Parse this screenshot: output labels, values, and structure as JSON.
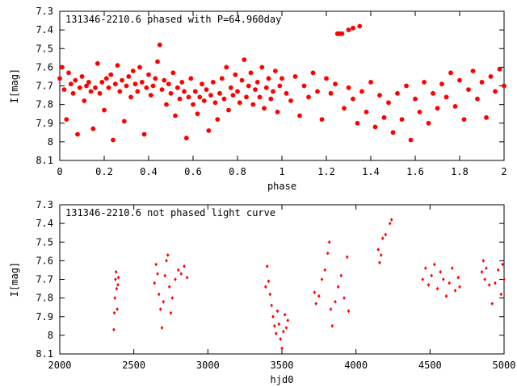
{
  "chart_data": [
    {
      "type": "scatter",
      "title": "131346-2210.6 phased with P=64.960day",
      "xlabel": "phase",
      "ylabel": "I[mag]",
      "xlim": [
        0,
        2
      ],
      "ylim": [
        8.1,
        7.3
      ],
      "y_inverted": true,
      "x_ticks": [
        "0",
        "0.2",
        "0.4",
        "0.6",
        "0.8",
        "1",
        "1.2",
        "1.4",
        "1.6",
        "1.8",
        "2"
      ],
      "y_ticks": [
        "7.3",
        "7.4",
        "7.5",
        "7.6",
        "7.7",
        "7.8",
        "7.9",
        "8",
        "8.1"
      ],
      "marker": "filled circle",
      "color": "#ff0000",
      "grid": false,
      "series": [
        {
          "points": [
            [
              0.0,
              7.66
            ],
            [
              0.01,
              7.6
            ],
            [
              0.02,
              7.72
            ],
            [
              0.03,
              7.88
            ],
            [
              0.04,
              7.63
            ],
            [
              0.05,
              7.69
            ],
            [
              0.06,
              7.74
            ],
            [
              0.07,
              7.67
            ],
            [
              0.08,
              7.96
            ],
            [
              0.09,
              7.71
            ],
            [
              0.1,
              7.65
            ],
            [
              0.11,
              7.78
            ],
            [
              0.12,
              7.7
            ],
            [
              0.13,
              7.68
            ],
            [
              0.14,
              7.73
            ],
            [
              0.15,
              7.93
            ],
            [
              0.16,
              7.71
            ],
            [
              0.17,
              7.58
            ],
            [
              0.18,
              7.74
            ],
            [
              0.19,
              7.68
            ],
            [
              0.2,
              7.83
            ],
            [
              0.21,
              7.66
            ],
            [
              0.22,
              7.71
            ],
            [
              0.23,
              7.64
            ],
            [
              0.24,
              7.99
            ],
            [
              0.25,
              7.69
            ],
            [
              0.26,
              7.59
            ],
            [
              0.27,
              7.73
            ],
            [
              0.28,
              7.67
            ],
            [
              0.29,
              7.89
            ],
            [
              0.3,
              7.7
            ],
            [
              0.31,
              7.65
            ],
            [
              0.32,
              7.76
            ],
            [
              0.33,
              7.62
            ],
            [
              0.34,
              7.69
            ],
            [
              0.35,
              7.73
            ],
            [
              0.36,
              7.6
            ],
            [
              0.37,
              7.68
            ],
            [
              0.38,
              7.96
            ],
            [
              0.39,
              7.71
            ],
            [
              0.4,
              7.64
            ],
            [
              0.41,
              7.75
            ],
            [
              0.42,
              7.7
            ],
            [
              0.43,
              7.66
            ],
            [
              0.44,
              7.57
            ],
            [
              0.45,
              7.48
            ],
            [
              0.46,
              7.72
            ],
            [
              0.47,
              7.67
            ],
            [
              0.48,
              7.8
            ],
            [
              0.49,
              7.69
            ],
            [
              0.5,
              7.74
            ],
            [
              0.51,
              7.63
            ],
            [
              0.52,
              7.86
            ],
            [
              0.53,
              7.71
            ],
            [
              0.54,
              7.77
            ],
            [
              0.55,
              7.68
            ],
            [
              0.56,
              7.73
            ],
            [
              0.57,
              7.98
            ],
            [
              0.58,
              7.76
            ],
            [
              0.59,
              7.66
            ],
            [
              0.6,
              7.8
            ],
            [
              0.61,
              7.73
            ],
            [
              0.62,
              7.85
            ],
            [
              0.63,
              7.76
            ],
            [
              0.64,
              7.69
            ],
            [
              0.65,
              7.78
            ],
            [
              0.66,
              7.72
            ],
            [
              0.67,
              7.94
            ],
            [
              0.68,
              7.75
            ],
            [
              0.69,
              7.68
            ],
            [
              0.7,
              7.79
            ],
            [
              0.71,
              7.88
            ],
            [
              0.72,
              7.74
            ],
            [
              0.73,
              7.66
            ],
            [
              0.74,
              7.77
            ],
            [
              0.75,
              7.6
            ],
            [
              0.76,
              7.83
            ],
            [
              0.77,
              7.71
            ],
            [
              0.78,
              7.75
            ],
            [
              0.79,
              7.64
            ],
            [
              0.8,
              7.73
            ],
            [
              0.81,
              7.79
            ],
            [
              0.82,
              7.67
            ],
            [
              0.83,
              7.56
            ],
            [
              0.84,
              7.76
            ],
            [
              0.85,
              7.7
            ],
            [
              0.86,
              7.63
            ],
            [
              0.87,
              7.8
            ],
            [
              0.88,
              7.72
            ],
            [
              0.89,
              7.68
            ],
            [
              0.9,
              7.76
            ],
            [
              0.91,
              7.6
            ],
            [
              0.92,
              7.82
            ],
            [
              0.93,
              7.71
            ],
            [
              0.94,
              7.66
            ],
            [
              0.95,
              7.77
            ],
            [
              0.96,
              7.73
            ],
            [
              0.97,
              7.62
            ],
            [
              0.98,
              7.84
            ],
            [
              0.99,
              7.7
            ],
            [
              1.0,
              7.66
            ],
            [
              1.02,
              7.74
            ],
            [
              1.04,
              7.78
            ],
            [
              1.06,
              7.65
            ],
            [
              1.08,
              7.86
            ],
            [
              1.1,
              7.7
            ],
            [
              1.12,
              7.76
            ],
            [
              1.14,
              7.63
            ],
            [
              1.16,
              7.73
            ],
            [
              1.18,
              7.88
            ],
            [
              1.2,
              7.66
            ],
            [
              1.22,
              7.74
            ],
            [
              1.24,
              7.69
            ],
            [
              1.25,
              7.42
            ],
            [
              1.26,
              7.42
            ],
            [
              1.27,
              7.42
            ],
            [
              1.3,
              7.4
            ],
            [
              1.32,
              7.39
            ],
            [
              1.35,
              7.38
            ],
            [
              1.28,
              7.82
            ],
            [
              1.3,
              7.71
            ],
            [
              1.32,
              7.77
            ],
            [
              1.34,
              7.9
            ],
            [
              1.36,
              7.73
            ],
            [
              1.38,
              7.84
            ],
            [
              1.4,
              7.68
            ],
            [
              1.42,
              7.92
            ],
            [
              1.44,
              7.75
            ],
            [
              1.46,
              7.87
            ],
            [
              1.48,
              7.79
            ],
            [
              1.5,
              7.95
            ],
            [
              1.52,
              7.74
            ],
            [
              1.54,
              7.88
            ],
            [
              1.56,
              7.7
            ],
            [
              1.58,
              7.99
            ],
            [
              1.6,
              7.77
            ],
            [
              1.62,
              7.84
            ],
            [
              1.64,
              7.68
            ],
            [
              1.66,
              7.9
            ],
            [
              1.68,
              7.74
            ],
            [
              1.7,
              7.82
            ],
            [
              1.72,
              7.69
            ],
            [
              1.74,
              7.76
            ],
            [
              1.76,
              7.63
            ],
            [
              1.78,
              7.81
            ],
            [
              1.8,
              7.67
            ],
            [
              1.82,
              7.88
            ],
            [
              1.84,
              7.72
            ],
            [
              1.86,
              7.62
            ],
            [
              1.88,
              7.77
            ],
            [
              1.9,
              7.68
            ],
            [
              1.92,
              7.87
            ],
            [
              1.94,
              7.65
            ],
            [
              1.96,
              7.73
            ],
            [
              1.98,
              7.61
            ],
            [
              2.0,
              7.7
            ]
          ]
        }
      ]
    },
    {
      "type": "scatter",
      "title": "131346-2210.6 not phased light curve",
      "xlabel": "hjd0",
      "ylabel": "I[mag]",
      "xlim": [
        2000,
        5000
      ],
      "ylim": [
        8.1,
        7.3
      ],
      "y_inverted": true,
      "x_ticks": [
        "2000",
        "2500",
        "3000",
        "3500",
        "4000",
        "4500",
        "5000"
      ],
      "y_ticks": [
        "7.3",
        "7.4",
        "7.5",
        "7.6",
        "7.7",
        "7.8",
        "7.9",
        "8",
        "8.1"
      ],
      "marker": "small filled diamond",
      "color": "#ff0000",
      "grid": false,
      "series": [
        {
          "points": [
            [
              2365,
              7.97
            ],
            [
              2368,
              7.88
            ],
            [
              2372,
              7.8
            ],
            [
              2376,
              7.7
            ],
            [
              2380,
              7.66
            ],
            [
              2384,
              7.75
            ],
            [
              2388,
              7.86
            ],
            [
              2392,
              7.73
            ],
            [
              2396,
              7.69
            ],
            [
              2640,
              7.72
            ],
            [
              2650,
              7.62
            ],
            [
              2660,
              7.67
            ],
            [
              2670,
              7.78
            ],
            [
              2680,
              7.86
            ],
            [
              2690,
              7.96
            ],
            [
              2700,
              7.82
            ],
            [
              2710,
              7.68
            ],
            [
              2720,
              7.6
            ],
            [
              2730,
              7.57
            ],
            [
              2740,
              7.74
            ],
            [
              2750,
              7.88
            ],
            [
              2760,
              7.8
            ],
            [
              2780,
              7.7
            ],
            [
              2800,
              7.65
            ],
            [
              2820,
              7.67
            ],
            [
              2840,
              7.63
            ],
            [
              2860,
              7.69
            ],
            [
              3390,
              7.74
            ],
            [
              3400,
              7.63
            ],
            [
              3410,
              7.71
            ],
            [
              3420,
              7.78
            ],
            [
              3430,
              7.84
            ],
            [
              3440,
              7.9
            ],
            [
              3450,
              7.95
            ],
            [
              3460,
              7.99
            ],
            [
              3470,
              7.87
            ],
            [
              3480,
              7.94
            ],
            [
              3490,
              8.02
            ],
            [
              3500,
              8.07
            ],
            [
              3510,
              7.98
            ],
            [
              3520,
              7.89
            ],
            [
              3530,
              7.96
            ],
            [
              3540,
              7.92
            ],
            [
              3720,
              7.77
            ],
            [
              3730,
              7.83
            ],
            [
              3750,
              7.79
            ],
            [
              3770,
              7.7
            ],
            [
              3790,
              7.65
            ],
            [
              3810,
              7.56
            ],
            [
              3820,
              7.5
            ],
            [
              3830,
              7.86
            ],
            [
              3840,
              7.95
            ],
            [
              3860,
              7.82
            ],
            [
              3880,
              7.74
            ],
            [
              3900,
              7.68
            ],
            [
              3920,
              7.8
            ],
            [
              3940,
              7.58
            ],
            [
              3950,
              7.87
            ],
            [
              4150,
              7.54
            ],
            [
              4160,
              7.61
            ],
            [
              4170,
              7.57
            ],
            [
              4180,
              7.48
            ],
            [
              4200,
              7.46
            ],
            [
              4230,
              7.4
            ],
            [
              4240,
              7.38
            ],
            [
              4450,
              7.7
            ],
            [
              4470,
              7.64
            ],
            [
              4490,
              7.73
            ],
            [
              4510,
              7.68
            ],
            [
              4530,
              7.62
            ],
            [
              4550,
              7.75
            ],
            [
              4570,
              7.66
            ],
            [
              4590,
              7.7
            ],
            [
              4610,
              7.79
            ],
            [
              4630,
              7.72
            ],
            [
              4650,
              7.64
            ],
            [
              4670,
              7.76
            ],
            [
              4690,
              7.69
            ],
            [
              4700,
              7.74
            ],
            [
              4850,
              7.66
            ],
            [
              4860,
              7.6
            ],
            [
              4870,
              7.7
            ],
            [
              4880,
              7.64
            ],
            [
              4900,
              7.73
            ],
            [
              4920,
              7.83
            ],
            [
              4940,
              7.72
            ],
            [
              4960,
              7.65
            ],
            [
              4980,
              7.78
            ],
            [
              4990,
              7.62
            ],
            [
              5000,
              7.7
            ]
          ]
        }
      ]
    }
  ]
}
